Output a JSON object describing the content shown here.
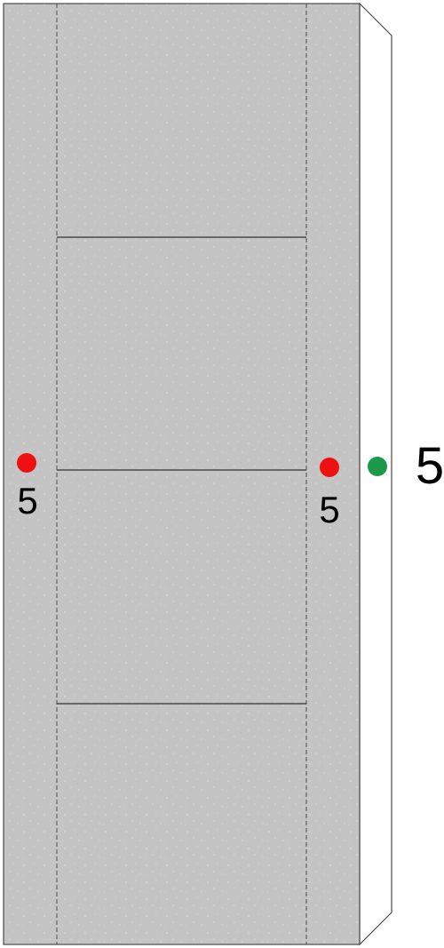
{
  "panel": {
    "fill_color": "#c4c4c4",
    "speckle_color": "#d8d8d8",
    "line_color": "#4a4a4a",
    "strip_line_style": "dashed",
    "tile_line_style": "solid"
  },
  "markers": {
    "left": {
      "color": "#ee1111",
      "label": "5"
    },
    "inner_right": {
      "color": "#ee1111",
      "label": "5"
    },
    "outer": {
      "color": "#1a9a48",
      "label": "5"
    }
  }
}
